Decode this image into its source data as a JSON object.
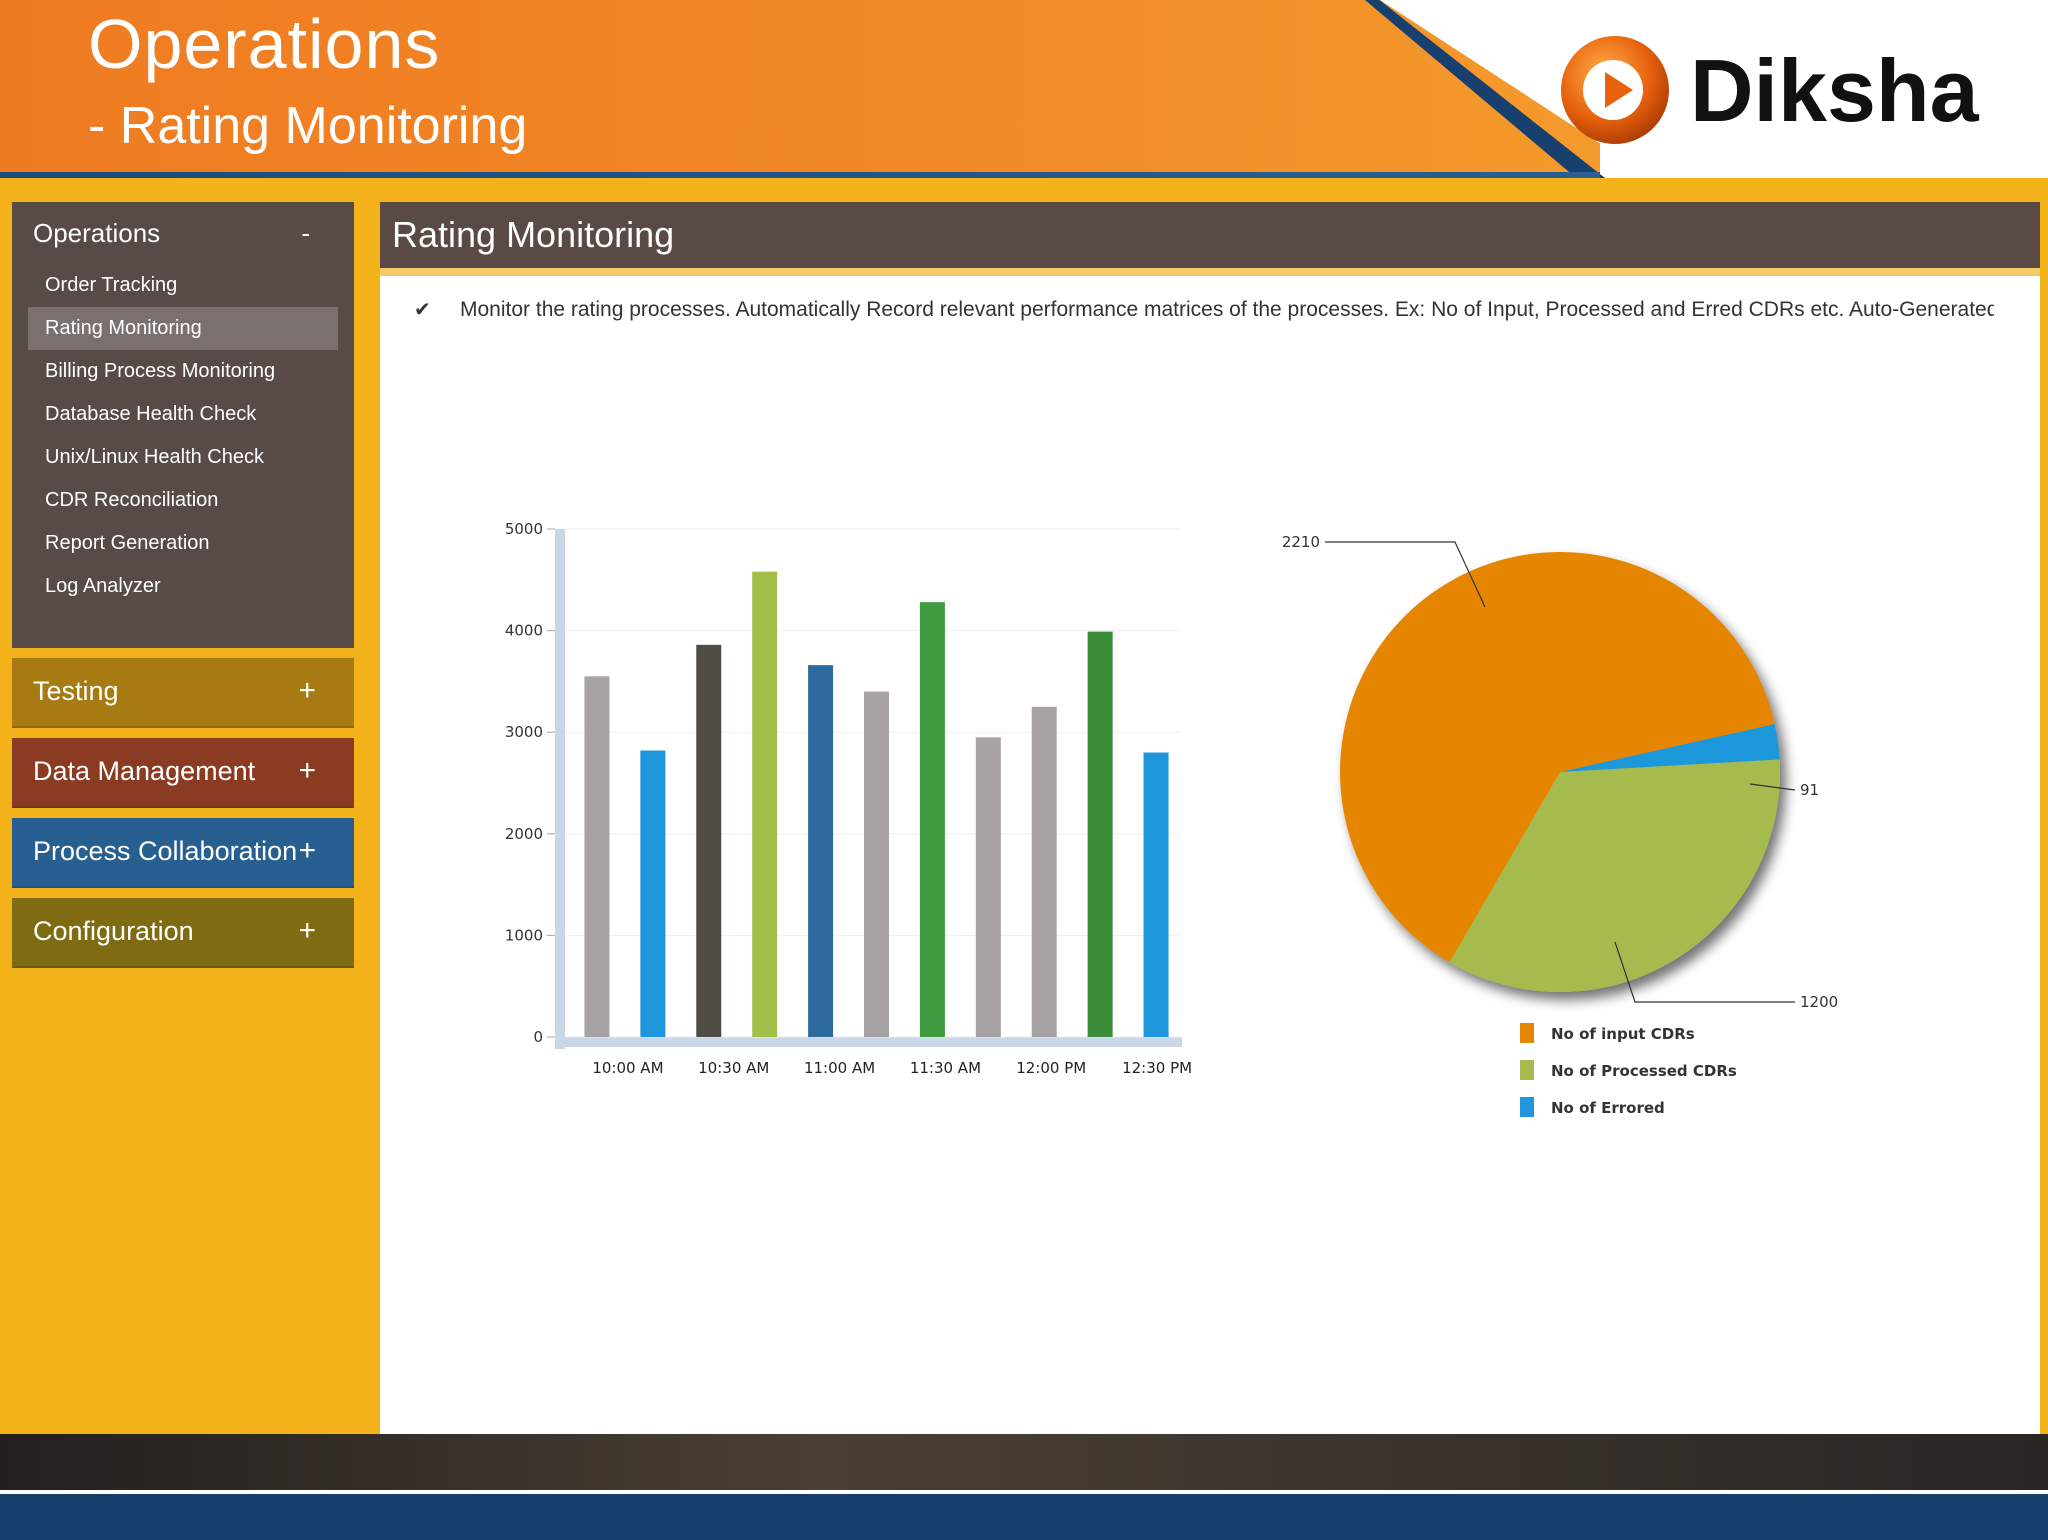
{
  "header": {
    "title": "Operations",
    "subtitle": "- Rating Monitoring",
    "logo_text": "Diksha"
  },
  "sidebar": {
    "operations": {
      "label": "Operations",
      "toggle": "-",
      "items": [
        {
          "label": "Order Tracking"
        },
        {
          "label": "Rating Monitoring",
          "active": true
        },
        {
          "label": "Billing Process Monitoring"
        },
        {
          "label": "Database Health Check"
        },
        {
          "label": "Unix/Linux Health Check"
        },
        {
          "label": "CDR Reconciliation"
        },
        {
          "label": "Report Generation"
        },
        {
          "label": "Log Analyzer"
        }
      ]
    },
    "sections": [
      {
        "label": "Testing",
        "toggle": "+",
        "color": "#a77a12"
      },
      {
        "label": "Data Management",
        "toggle": "+",
        "color": "#8a3b21"
      },
      {
        "label": "Process Collaboration",
        "toggle": "+",
        "color": "#285f91"
      },
      {
        "label": "Configuration",
        "toggle": "+",
        "color": "#7f6b11"
      }
    ]
  },
  "main": {
    "title": "Rating Monitoring",
    "description": "Monitor the rating processes. Automatically Record relevant performance matrices of the processes. Ex: No of Input, Processed and Erred CDRs etc. Auto-Generated"
  },
  "chart_data": [
    {
      "type": "bar",
      "categories": [
        "10:00 AM",
        "10:30 AM",
        "11:00 AM",
        "11:30 AM",
        "12:00 PM",
        "12:30 PM"
      ],
      "bars": [
        {
          "value": 3550,
          "color": "#a7a2a4"
        },
        {
          "value": 2820,
          "color": "#1e96dc"
        },
        {
          "value": 3860,
          "color": "#4f4c43"
        },
        {
          "value": 4580,
          "color": "#a4be4a"
        },
        {
          "value": 3660,
          "color": "#2d6b9e"
        },
        {
          "value": 3400,
          "color": "#a7a2a4"
        },
        {
          "value": 4280,
          "color": "#3e9b3f"
        },
        {
          "value": 2950,
          "color": "#a7a2a4"
        },
        {
          "value": 3250,
          "color": "#a7a2a4"
        },
        {
          "value": 3990,
          "color": "#3a8c38"
        },
        {
          "value": 2800,
          "color": "#1e96dc"
        }
      ],
      "yticks": [
        0,
        1000,
        2000,
        3000,
        4000,
        5000
      ],
      "ylim": [
        0,
        5000
      ]
    },
    {
      "type": "pie",
      "slices": [
        {
          "name": "No of input CDRs",
          "value": 2210,
          "color": "#e58505"
        },
        {
          "name": "No of Processed CDRs",
          "value": 1200,
          "color": "#a5bb4e"
        },
        {
          "name": "No of Errored",
          "value": 91,
          "color": "#1f97da"
        }
      ],
      "data_labels": [
        "2210",
        "1200",
        "91"
      ]
    }
  ]
}
